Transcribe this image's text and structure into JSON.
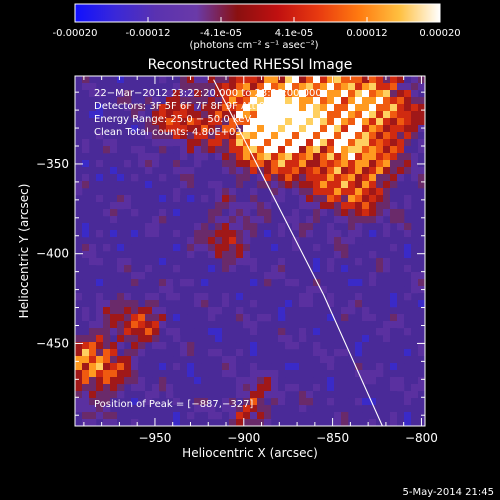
{
  "colorbar": {
    "ticks": [
      "-0.00020",
      "-0.00012",
      "-4.1e-05",
      "4.1e-05",
      "0.00012",
      "0.00020"
    ],
    "unit": "(photons cm⁻² s⁻¹ asec⁻²)",
    "colors": [
      "#1010ff",
      "#3a28d8",
      "#5a32b0",
      "#6a3aa8",
      "#8a1010",
      "#c01010",
      "#e83a10",
      "#ff7a10",
      "#ffc040",
      "#ffffff"
    ]
  },
  "chart_data": {
    "type": "heatmap",
    "title": "Reconstructed RHESSI Image",
    "xlabel": "Heliocentric X (arcsec)",
    "ylabel": "Heliocentric Y (arcsec)",
    "xlim": [
      -995,
      -798
    ],
    "ylim": [
      -496,
      -301
    ],
    "x_ticks": [
      -950,
      -900,
      -850,
      -800
    ],
    "x_tick_labels": [
      "−950",
      "−900",
      "−850",
      "−800"
    ],
    "y_ticks": [
      -350,
      -400,
      -450
    ],
    "y_tick_labels": [
      "−350",
      "−400",
      "−450"
    ],
    "value_range": [
      -0.0002,
      0.0002
    ],
    "limb_line": [
      [
        -917,
        -303
      ],
      [
        -855,
        -423
      ],
      [
        -822,
        -496
      ]
    ],
    "info_lines": [
      "22−Mar−2012 23:22:20.000 to 23:28:00.000",
      "Detectors: 3F 5F 6F 7F 8F 9F Att 0",
      "Energy Range: 25.0 − 50.0 keV",
      "Clean     Total counts: 4.80E+03"
    ],
    "peak_label": "Position of Peak = [−887,−327]",
    "hot_spots": [
      {
        "x": -870,
        "y": -320,
        "v": 1.0,
        "s": 35
      },
      {
        "x": -828,
        "y": -320,
        "v": 0.9,
        "s": 26
      },
      {
        "x": -838,
        "y": -360,
        "v": 0.7,
        "s": 22
      },
      {
        "x": -887,
        "y": -327,
        "v": 1.0,
        "s": 22
      },
      {
        "x": -935,
        "y": -325,
        "v": 0.6,
        "s": 18
      },
      {
        "x": -985,
        "y": -463,
        "v": 0.9,
        "s": 18
      },
      {
        "x": -960,
        "y": -437,
        "v": 0.6,
        "s": 14
      },
      {
        "x": -910,
        "y": -390,
        "v": 0.6,
        "s": 12
      },
      {
        "x": -895,
        "y": -485,
        "v": 0.5,
        "s": 14
      }
    ]
  },
  "timestamp": "5-May-2014 21:45"
}
